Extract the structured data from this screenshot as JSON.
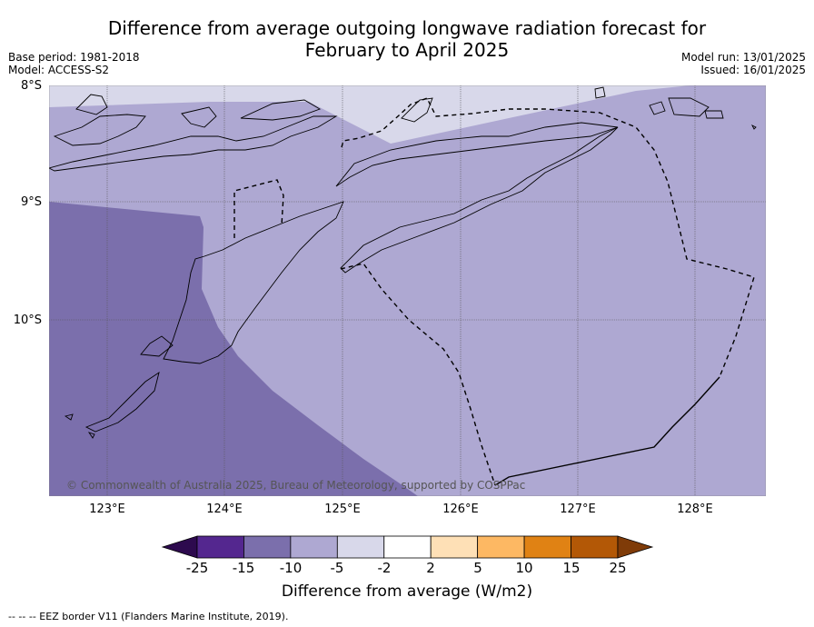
{
  "title_line1": "Difference from average outgoing longwave radiation forecast for",
  "title_line2": "February to April 2025",
  "base_period": "Base period: 1981-2018",
  "model": "Model: ACCESS-S2",
  "model_run": "Model run: 13/01/2025",
  "issued": "Issued: 16/01/2025",
  "lat_labels": [
    "8°S",
    "9°S",
    "10°S"
  ],
  "lon_labels": [
    "123°E",
    "124°E",
    "125°E",
    "126°E",
    "127°E",
    "128°E"
  ],
  "credit": "© Commonwealth of Australia 2025, Bureau of Meteorology, supported by COSPPac",
  "colorbar": {
    "ticks": [
      "-25",
      "-15",
      "-10",
      "-5",
      "-2",
      "2",
      "5",
      "10",
      "15",
      "25"
    ],
    "colors": [
      "#2d0a4e",
      "#54278f",
      "#7b6fac",
      "#aea8d2",
      "#d8d8ea",
      "#ffffff",
      "#fee0b6",
      "#fdb863",
      "#e08214",
      "#b35806",
      "#7f3b08"
    ],
    "label": "Difference from average (W/m2)"
  },
  "footnote": "--  --  -- EEZ border V11 (Flanders Marine Institute, 2019).",
  "map_colors": {
    "bin_neg15_neg10": "#7b6fac",
    "bin_neg10_neg5": "#aea8d2",
    "bin_neg5_neg2": "#d8d8ea"
  }
}
